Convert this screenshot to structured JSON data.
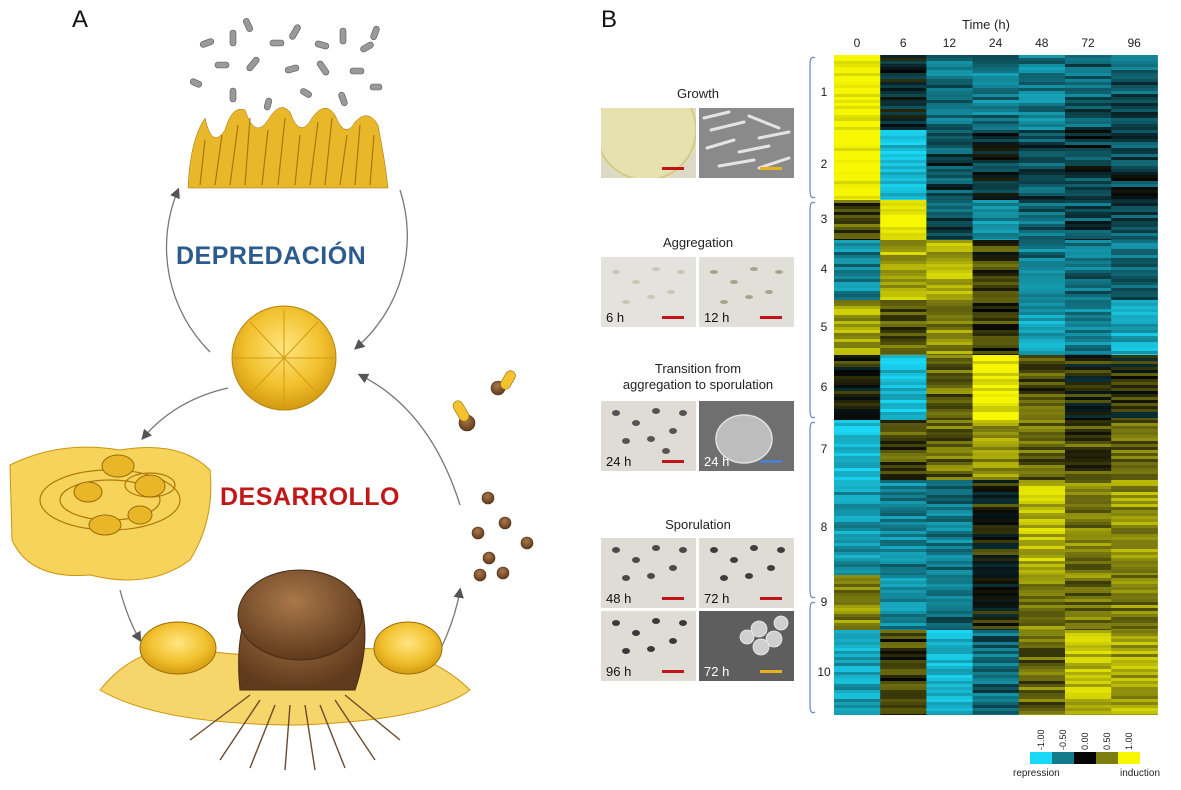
{
  "panel_a": {
    "letter": "A",
    "label_predation": "DEPREDACIÓN",
    "label_development": "DESARROLLO",
    "colors": {
      "predation": "#2a5b8c",
      "development": "#c01818",
      "myxo": "#f2c230",
      "fruiting": "#7a4a28",
      "prey": "#8f8f8f"
    }
  },
  "panel_b": {
    "letter": "B",
    "stages": [
      {
        "title": "Growth"
      },
      {
        "title": "Aggregation",
        "thumb_labels": [
          "6 h",
          "12 h"
        ]
      },
      {
        "title_line1": "Transition from",
        "title_line2": "aggregation to sporulation",
        "thumb_labels": [
          "24 h",
          "24 h"
        ]
      },
      {
        "title": "Sporulation",
        "thumb_labels": [
          "48 h",
          "72 h",
          "96 h",
          "72 h"
        ]
      }
    ],
    "scalebar_colors": {
      "red": "#c0141a",
      "yellow": "#e8b21c",
      "blue": "#4f7fc7"
    }
  },
  "chart_data": {
    "type": "heatmap",
    "title": "",
    "xlabel": "Time (h)",
    "x": [
      "0",
      "6",
      "12",
      "24",
      "48",
      "72",
      "96"
    ],
    "clusters": [
      "1",
      "2",
      "3",
      "4",
      "5",
      "6",
      "7",
      "8",
      "9",
      "10"
    ],
    "cluster_pattern": [
      [
        1.0,
        -0.1,
        -0.45,
        -0.5,
        -0.5,
        -0.35,
        -0.35
      ],
      [
        1.0,
        -0.85,
        -0.25,
        -0.15,
        -0.3,
        -0.2,
        -0.2
      ],
      [
        0.3,
        1.0,
        -0.3,
        -0.6,
        -0.35,
        -0.3,
        -0.3
      ],
      [
        -0.55,
        0.7,
        0.7,
        0.2,
        -0.5,
        -0.45,
        -0.45
      ],
      [
        0.65,
        0.35,
        0.55,
        0.2,
        -0.7,
        -0.55,
        -0.75
      ],
      [
        0.1,
        -0.85,
        0.4,
        0.95,
        0.3,
        0.1,
        0.1
      ],
      [
        -0.85,
        0.3,
        0.4,
        0.6,
        0.4,
        0.3,
        0.35
      ],
      [
        -0.65,
        -0.55,
        -0.5,
        0.1,
        0.75,
        0.5,
        0.6
      ],
      [
        0.5,
        -0.6,
        -0.45,
        0.05,
        0.5,
        0.45,
        0.5
      ],
      [
        -0.7,
        0.2,
        -0.8,
        -0.4,
        0.4,
        0.75,
        0.65
      ]
    ],
    "color_scale": {
      "ticks": [
        "-1.00",
        "-0.50",
        "0.00",
        "0.50",
        "1.00"
      ],
      "colors": [
        "#1ad8f5",
        "#127a8a",
        "#050505",
        "#7d7d10",
        "#f7f700"
      ],
      "min_label": "repression",
      "max_label": "induction"
    }
  }
}
